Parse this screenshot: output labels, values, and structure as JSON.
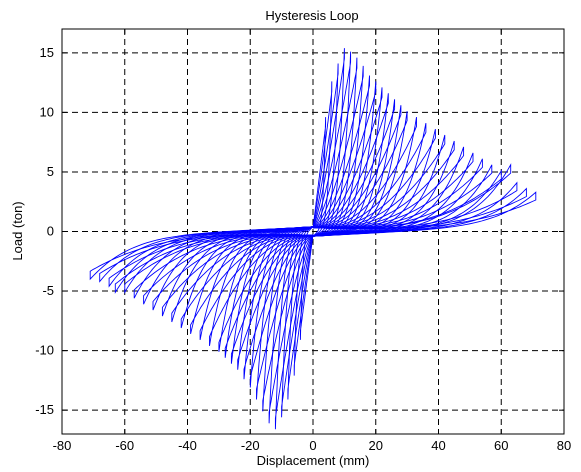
{
  "chart_data": {
    "type": "line",
    "title": "Hysteresis Loop",
    "xlabel": "Displacement (mm)",
    "ylabel": "Load (ton)",
    "xlim": [
      -80,
      80
    ],
    "ylim": [
      -17,
      17
    ],
    "xticks": [
      -80,
      -60,
      -40,
      -20,
      0,
      20,
      40,
      60,
      80
    ],
    "yticks": [
      -15,
      -10,
      -5,
      0,
      5,
      10,
      15
    ],
    "grid": true,
    "grid_style": "dashed",
    "legend": "none",
    "series": [
      {
        "color": "#0000ff",
        "cycles": [
          {
            "max_x": 4,
            "max_y": 9.0,
            "min_x": -4,
            "min_y": -8.5
          },
          {
            "max_x": 6,
            "max_y": 12.0,
            "min_x": -6,
            "min_y": -11.5
          },
          {
            "max_x": 8,
            "max_y": 13.5,
            "min_x": -8,
            "min_y": -13.5
          },
          {
            "max_x": 10,
            "max_y": 14.8,
            "min_x": -10,
            "min_y": -15.0
          },
          {
            "max_x": 12,
            "max_y": 14.5,
            "min_x": -12,
            "min_y": -16.0
          },
          {
            "max_x": 14,
            "max_y": 14.0,
            "min_x": -14,
            "min_y": -15.5
          },
          {
            "max_x": 16,
            "max_y": 13.3,
            "min_x": -16,
            "min_y": -14.5
          },
          {
            "max_x": 18,
            "max_y": 12.5,
            "min_x": -18,
            "min_y": -13.5
          },
          {
            "max_x": 20,
            "max_y": 12.0,
            "min_x": -20,
            "min_y": -12.5
          },
          {
            "max_x": 22,
            "max_y": 11.5,
            "min_x": -22,
            "min_y": -11.8
          },
          {
            "max_x": 24,
            "max_y": 11.0,
            "min_x": -24,
            "min_y": -11.0
          },
          {
            "max_x": 26,
            "max_y": 10.5,
            "min_x": -26,
            "min_y": -10.5
          },
          {
            "max_x": 28,
            "max_y": 10.0,
            "min_x": -28,
            "min_y": -10.0
          },
          {
            "max_x": 30,
            "max_y": 9.5,
            "min_x": -30,
            "min_y": -9.5
          },
          {
            "max_x": 33,
            "max_y": 9.0,
            "min_x": -33,
            "min_y": -9.0
          },
          {
            "max_x": 36,
            "max_y": 8.5,
            "min_x": -36,
            "min_y": -8.5
          },
          {
            "max_x": 39,
            "max_y": 8.0,
            "min_x": -39,
            "min_y": -8.0
          },
          {
            "max_x": 42,
            "max_y": 7.5,
            "min_x": -42,
            "min_y": -7.5
          },
          {
            "max_x": 45,
            "max_y": 7.0,
            "min_x": -45,
            "min_y": -7.0
          },
          {
            "max_x": 48,
            "max_y": 6.5,
            "min_x": -48,
            "min_y": -6.5
          },
          {
            "max_x": 51,
            "max_y": 6.0,
            "min_x": -51,
            "min_y": -6.0
          },
          {
            "max_x": 54,
            "max_y": 5.5,
            "min_x": -54,
            "min_y": -5.5
          },
          {
            "max_x": 57,
            "max_y": 5.0,
            "min_x": -57,
            "min_y": -5.0
          },
          {
            "max_x": 60,
            "max_y": 4.5,
            "min_x": -60,
            "min_y": -4.5
          },
          {
            "max_x": 63,
            "max_y": 5.0,
            "min_x": -63,
            "min_y": -4.5
          },
          {
            "max_x": 65,
            "max_y": 3.5,
            "min_x": -65,
            "min_y": -4.0
          },
          {
            "max_x": 68,
            "max_y": 3.0,
            "min_x": -68,
            "min_y": -3.6
          },
          {
            "max_x": 71,
            "max_y": 2.7,
            "min_x": -71,
            "min_y": -3.4
          }
        ]
      }
    ]
  }
}
